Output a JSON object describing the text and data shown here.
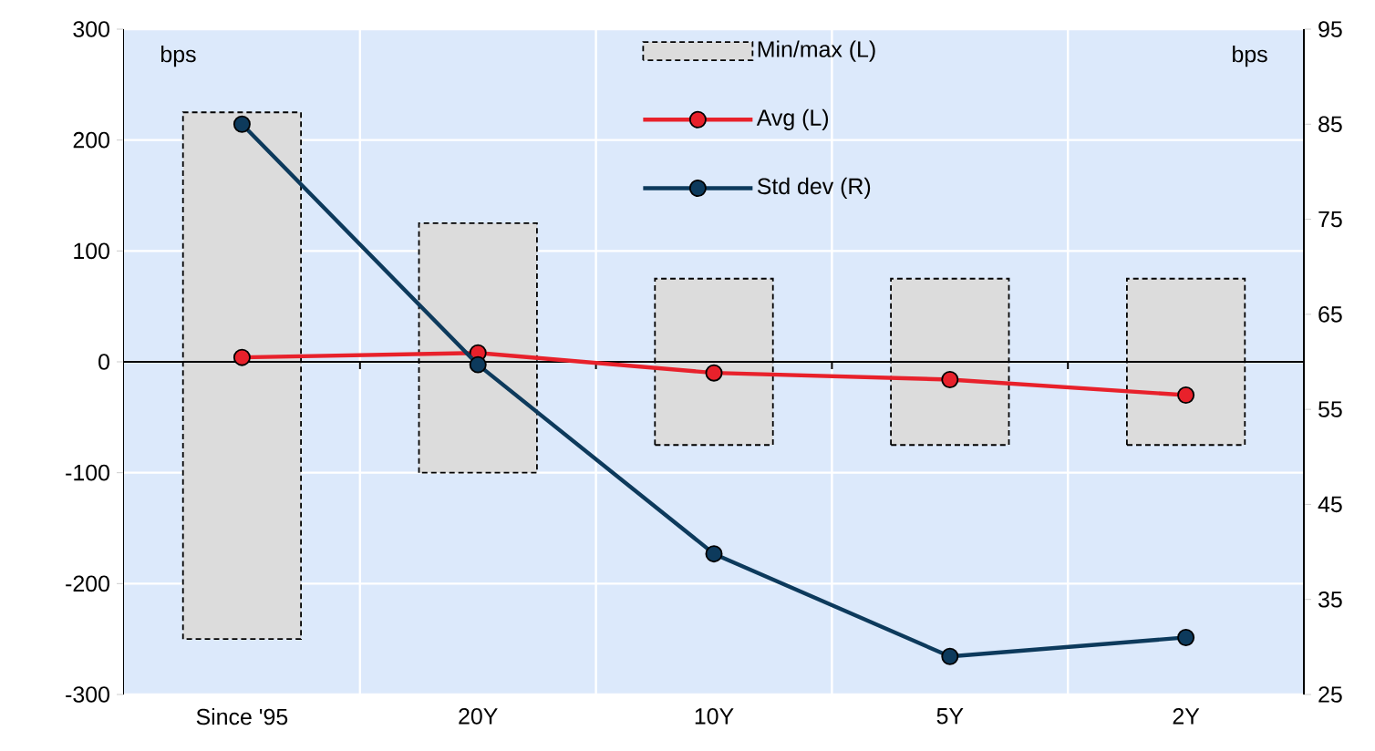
{
  "chart_data": {
    "type": "bar",
    "categories": [
      "Since '95",
      "20Y",
      "10Y",
      "5Y",
      "2Y"
    ],
    "ylabel": "bps",
    "y2label": "bps",
    "ylim": [
      -300,
      300
    ],
    "yticks": [
      -300,
      -200,
      -100,
      0,
      100,
      200,
      300
    ],
    "y2lim": [
      25,
      95
    ],
    "y2ticks": [
      25,
      35,
      45,
      55,
      65,
      75,
      85,
      95
    ],
    "grid": true,
    "legend": "top",
    "series": [
      {
        "name": "Min/max (L)",
        "color": "#dcdcdc",
        "line_style": "dashed",
        "base": [
          -250,
          -100,
          -75,
          -75,
          -75
        ],
        "values": [
          475,
          225,
          150,
          150,
          150
        ]
      },
      {
        "name": "Avg (L)",
        "type": "line",
        "color": "#e8212b",
        "marker": "circle",
        "values": [
          4,
          8,
          -10,
          -16,
          -30
        ]
      },
      {
        "name": "Std dev (R)",
        "type": "line",
        "color": "#0d3a5c",
        "marker": "circle",
        "axis": "y2",
        "values": [
          85,
          59.7,
          39.8,
          29,
          31
        ]
      }
    ]
  }
}
